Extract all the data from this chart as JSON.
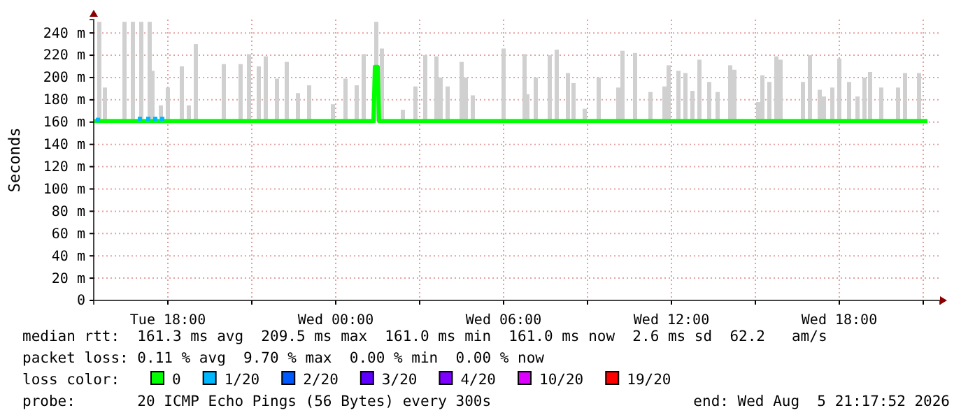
{
  "chart_data": {
    "type": "line",
    "ylabel": "Seconds",
    "xlim": [
      "2026-08-04T15:21",
      "2026-08-05T21:36"
    ],
    "ylim": [
      0,
      252
    ],
    "xticks": [
      {
        "value": "2026-08-04T18:00",
        "label": "Tue 18:00"
      },
      {
        "value": "2026-08-04T21:00",
        "label": null
      },
      {
        "value": "2026-08-05T00:00",
        "label": "Wed 00:00"
      },
      {
        "value": "2026-08-05T03:00",
        "label": null
      },
      {
        "value": "2026-08-05T06:00",
        "label": "Wed 06:00"
      },
      {
        "value": "2026-08-05T09:00",
        "label": null
      },
      {
        "value": "2026-08-05T12:00",
        "label": "Wed 12:00"
      },
      {
        "value": "2026-08-05T15:00",
        "label": null
      },
      {
        "value": "2026-08-05T18:00",
        "label": "Wed 18:00"
      },
      {
        "value": "2026-08-05T21:00",
        "label": null
      }
    ],
    "yticks": [
      0,
      {
        "value": 20,
        "label": "20 m"
      },
      {
        "value": 40,
        "label": "40 m"
      },
      {
        "value": 60,
        "label": "60 m"
      },
      {
        "value": 80,
        "label": "80 m"
      },
      {
        "value": 100,
        "label": "100 m"
      },
      {
        "value": 120,
        "label": "120 m"
      },
      {
        "value": 140,
        "label": "140 m"
      },
      {
        "value": 160,
        "label": "160 m"
      },
      {
        "value": 180,
        "label": "180 m"
      },
      {
        "value": 200,
        "label": "200 m"
      },
      {
        "value": 220,
        "label": "220 m"
      },
      {
        "value": 240,
        "label": "240 m"
      }
    ],
    "grid": true,
    "legend": "bottom",
    "legend_title": "loss color:",
    "series": [
      {
        "type": "bar",
        "color": "#d0d0d0",
        "x": [
          "2026-08-04T15:33",
          "2026-08-04T15:45",
          "2026-08-04T16:27",
          "2026-08-04T16:45",
          "2026-08-04T17:03",
          "2026-08-04T17:21",
          "2026-08-04T17:27",
          "2026-08-04T17:45",
          "2026-08-04T18:00",
          "2026-08-04T18:30",
          "2026-08-04T18:45",
          "2026-08-04T19:00",
          "2026-08-04T20:00",
          "2026-08-04T20:36",
          "2026-08-04T20:54",
          "2026-08-04T21:15",
          "2026-08-04T21:30",
          "2026-08-04T21:54",
          "2026-08-04T22:15",
          "2026-08-04T22:39",
          "2026-08-04T23:03",
          "2026-08-04T23:54",
          "2026-08-05T00:21",
          "2026-08-05T00:45",
          "2026-08-05T01:00",
          "2026-08-05T01:27",
          "2026-08-05T01:39",
          "2026-08-05T02:24",
          "2026-08-05T02:51",
          "2026-08-05T03:12",
          "2026-08-05T03:36",
          "2026-08-05T03:45",
          "2026-08-05T04:00",
          "2026-08-05T04:30",
          "2026-08-05T04:39",
          "2026-08-05T04:54",
          "2026-08-05T06:00",
          "2026-08-05T06:45",
          "2026-08-05T06:51",
          "2026-08-05T07:09",
          "2026-08-05T07:39",
          "2026-08-05T07:54",
          "2026-08-05T08:18",
          "2026-08-05T08:30",
          "2026-08-05T08:54",
          "2026-08-05T09:24",
          "2026-08-05T10:06",
          "2026-08-05T10:15",
          "2026-08-05T10:42",
          "2026-08-05T11:15",
          "2026-08-05T11:45",
          "2026-08-05T11:54",
          "2026-08-05T12:15",
          "2026-08-05T12:30",
          "2026-08-05T12:45",
          "2026-08-05T13:00",
          "2026-08-05T13:21",
          "2026-08-05T13:39",
          "2026-08-05T14:06",
          "2026-08-05T14:15",
          "2026-08-05T15:06",
          "2026-08-05T15:15",
          "2026-08-05T15:30",
          "2026-08-05T15:45",
          "2026-08-05T15:54",
          "2026-08-05T16:42",
          "2026-08-05T16:57",
          "2026-08-05T17:18",
          "2026-08-05T17:27",
          "2026-08-05T17:45",
          "2026-08-05T18:00",
          "2026-08-05T18:21",
          "2026-08-05T18:39",
          "2026-08-05T18:54",
          "2026-08-05T19:06",
          "2026-08-05T19:30",
          "2026-08-05T20:06",
          "2026-08-05T20:21",
          "2026-08-05T20:51"
        ],
        "base": [
          161,
          161,
          161,
          161,
          161,
          161,
          161,
          161,
          161,
          161,
          161,
          161,
          161,
          161,
          161,
          161,
          161,
          161,
          161,
          161,
          161,
          161,
          161,
          161,
          161,
          161,
          161,
          161,
          161,
          161,
          161,
          161,
          161,
          161,
          161,
          161,
          161,
          161,
          161,
          161,
          161,
          161,
          161,
          161,
          161,
          161,
          161,
          161,
          161,
          161,
          161,
          161,
          161,
          161,
          161,
          161,
          161,
          161,
          161,
          161,
          161,
          161,
          161,
          161,
          161,
          161,
          161,
          161,
          161,
          161,
          161,
          161,
          161,
          161,
          161,
          161,
          161,
          161,
          161
        ],
        "values": [
          89,
          30,
          89,
          89,
          89,
          89,
          45,
          14,
          30,
          49,
          14,
          69,
          51,
          51,
          60,
          49,
          58,
          38,
          53,
          25,
          32,
          15,
          38,
          32,
          60,
          89,
          65,
          10,
          31,
          59,
          58,
          39,
          31,
          53,
          39,
          23,
          65,
          60,
          24,
          39,
          59,
          64,
          43,
          34,
          11,
          39,
          30,
          63,
          61,
          26,
          31,
          50,
          45,
          43,
          27,
          55,
          35,
          26,
          50,
          46,
          17,
          41,
          35,
          58,
          55,
          35,
          59,
          28,
          22,
          30,
          56,
          35,
          22,
          39,
          44,
          30,
          30,
          43,
          43
        ]
      },
      {
        "name": "0",
        "color": "#00ff00",
        "x": [
          "2026-08-04T15:21",
          "2026-08-05T01:21",
          "2026-08-05T01:24",
          "2026-08-05T01:30",
          "2026-08-05T01:33",
          "2026-08-05T21:09"
        ],
        "values": [
          161,
          161,
          209.5,
          209.5,
          161,
          161
        ]
      },
      {
        "type": "scatter",
        "name": "1/20",
        "color": "#00b8ff",
        "x": [
          "2026-08-04T15:30",
          "2026-08-04T17:00",
          "2026-08-04T17:18",
          "2026-08-04T17:33",
          "2026-08-04T17:48"
        ],
        "values": [
          162,
          163,
          163,
          163,
          163
        ]
      },
      {
        "name": "2/20",
        "color": "#0059ff"
      },
      {
        "name": "3/20",
        "color": "#5e00ff"
      },
      {
        "name": "4/20",
        "color": "#7e00ff"
      },
      {
        "name": "10/20",
        "color": "#dd00ff"
      },
      {
        "name": "19/20",
        "color": "#ff0000"
      }
    ],
    "annotations": [
      "median rtt:  161.3 ms avg  209.5 ms max  161.0 ms min  161.0 ms now  2.6 ms sd  62.2   am/s",
      "packet loss: 0.11 % avg  9.70 % max  0.00 % min  0.00 % now",
      "probe:       20 ICMP Echo Pings (56 Bytes) every 300s",
      "end: Wed Aug  5 21:17:52 2026"
    ]
  }
}
